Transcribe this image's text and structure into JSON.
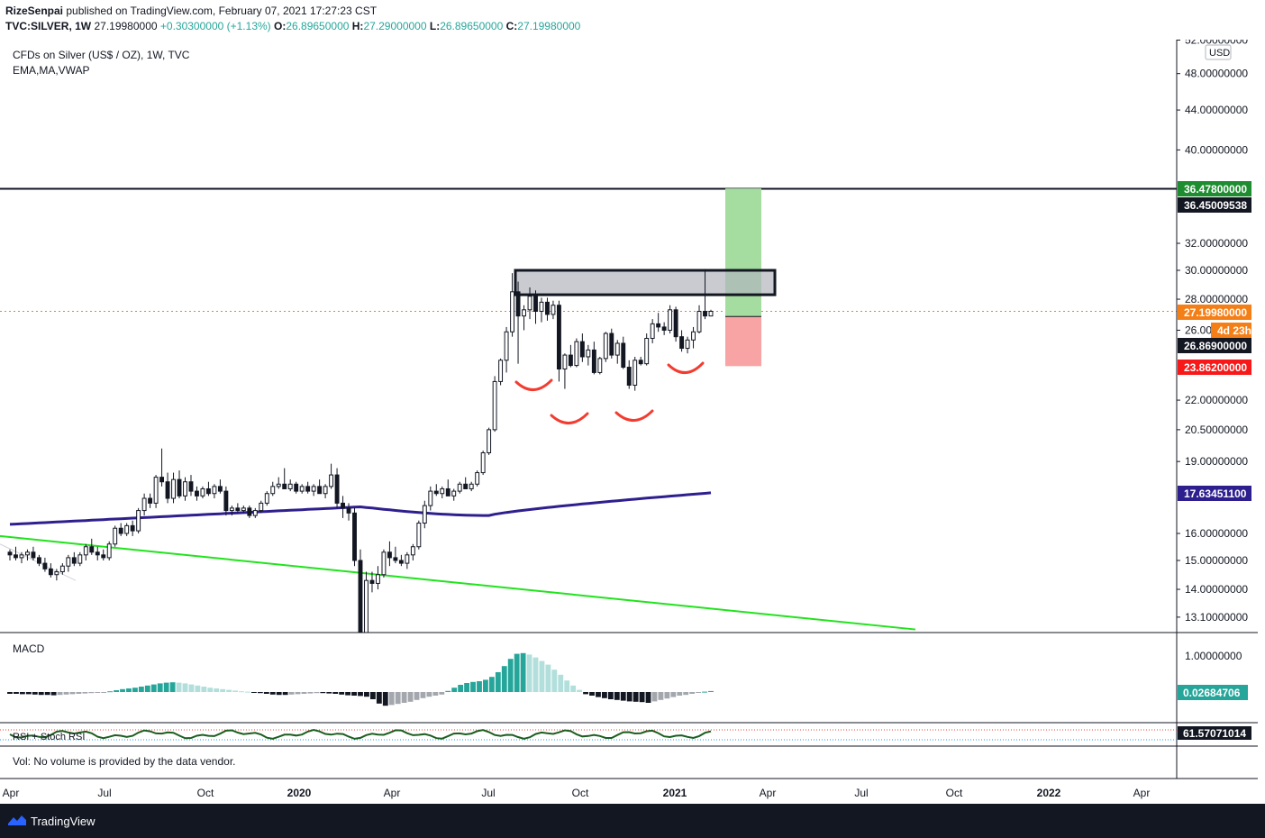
{
  "header": {
    "publisher": "RizeSenpai",
    "published_text": "published on TradingView.com, February 07, 2021 17:27:23 CST",
    "symbol": "TVC:SILVER, 1W",
    "last": "27.19980000",
    "change": "+0.30300000 (+1.13%)",
    "o_label": "O:",
    "o": "26.89650000",
    "h_label": "H:",
    "h": "27.29000000",
    "l_label": "L:",
    "l": "26.89650000",
    "c_label": "C:",
    "c": "27.19980000"
  },
  "legend": {
    "title": "CFDs on Silver (US$ / OZ), 1W, TVC",
    "indicators": "EMA,MA,VWAP"
  },
  "panes": {
    "macd_label": "MACD",
    "rsi_label": "RSI + Stoch RSI",
    "volume_note": "Vol: No volume is provided by the data vendor."
  },
  "footer": {
    "brand": "TradingView"
  },
  "colors": {
    "up": "#ffffff",
    "down": "#131722",
    "ema": "#2e1f8e",
    "trend": "#21e31d",
    "target": "#a5dca0",
    "stop": "#f8a3a4",
    "zone": "#b2b5be",
    "hs": "#f23c30",
    "macd_pos": "#26a69a",
    "macd_pos_fade": "#b2dfdb",
    "macd_neg": "#131722",
    "macd_neg_fade": "#a4a7ad"
  },
  "chart_data": {
    "type": "candlestick",
    "title": "CFDs on Silver (US$ / OZ), 1W, TVC",
    "y_scale": "log",
    "ylim": [
      12.7,
      53.5
    ],
    "currency_badge": "USD",
    "y_ticks": [
      "52.00000000",
      "48.00000000",
      "44.00000000",
      "40.00000000",
      "32.00000000",
      "30.00000000",
      "28.00000000",
      "26.00",
      "22.00000000",
      "20.50000000",
      "19.00000000",
      "16.00000000",
      "15.00000000",
      "14.00000000",
      "13.10000000"
    ],
    "price_labels": [
      {
        "value": "36.47800000",
        "color": "#1e8d30"
      },
      {
        "value": "36.45009538",
        "color": "#131722"
      },
      {
        "value": "27.19980000",
        "color": "#f57f17"
      },
      {
        "value": "4d 23h",
        "color": "#f57f17"
      },
      {
        "value": "26.86900000",
        "color": "#131722"
      },
      {
        "value": "23.86200000",
        "color": "#f71919"
      },
      {
        "value": "17.63451100",
        "color": "#2e1f8e"
      }
    ],
    "x_ticks": [
      "Apr",
      "Jul",
      "Oct",
      "2020",
      "Apr",
      "Jul",
      "Oct",
      "2021",
      "Apr",
      "Jul",
      "Oct",
      "2022",
      "Apr"
    ],
    "candles": [
      [
        15.3,
        15.4,
        15.0,
        15.2
      ],
      [
        15.2,
        15.5,
        15.0,
        15.1
      ],
      [
        15.1,
        15.3,
        14.9,
        15.2
      ],
      [
        15.2,
        15.4,
        15.0,
        15.3
      ],
      [
        15.3,
        15.5,
        15.0,
        15.1
      ],
      [
        15.1,
        15.2,
        14.8,
        14.9
      ],
      [
        14.9,
        15.1,
        14.6,
        14.7
      ],
      [
        14.7,
        14.9,
        14.4,
        14.5
      ],
      [
        14.5,
        14.7,
        14.3,
        14.6
      ],
      [
        14.6,
        14.9,
        14.5,
        14.8
      ],
      [
        14.8,
        15.2,
        14.6,
        15.1
      ],
      [
        15.1,
        15.3,
        14.8,
        14.9
      ],
      [
        14.9,
        15.3,
        14.8,
        15.2
      ],
      [
        15.2,
        15.6,
        15.0,
        15.5
      ],
      [
        15.5,
        15.8,
        15.2,
        15.3
      ],
      [
        15.3,
        15.5,
        15.0,
        15.2
      ],
      [
        15.2,
        15.4,
        15.0,
        15.1
      ],
      [
        15.1,
        15.7,
        15.0,
        15.6
      ],
      [
        15.6,
        16.3,
        15.5,
        16.2
      ],
      [
        16.2,
        16.4,
        15.9,
        16.0
      ],
      [
        16.0,
        16.4,
        15.9,
        16.3
      ],
      [
        16.3,
        16.5,
        15.9,
        16.1
      ],
      [
        16.1,
        17.0,
        16.0,
        16.9
      ],
      [
        16.9,
        17.6,
        16.7,
        17.4
      ],
      [
        17.4,
        17.6,
        17.0,
        17.2
      ],
      [
        17.2,
        18.4,
        17.0,
        18.3
      ],
      [
        18.3,
        19.6,
        17.9,
        18.1
      ],
      [
        18.1,
        18.5,
        17.2,
        17.4
      ],
      [
        17.4,
        18.5,
        17.2,
        18.2
      ],
      [
        18.2,
        18.6,
        17.4,
        17.5
      ],
      [
        17.5,
        18.3,
        17.3,
        18.1
      ],
      [
        18.1,
        18.4,
        17.5,
        17.7
      ],
      [
        17.7,
        17.9,
        17.3,
        17.5
      ],
      [
        17.5,
        17.9,
        17.4,
        17.8
      ],
      [
        17.8,
        18.1,
        17.5,
        17.6
      ],
      [
        17.6,
        18.0,
        17.4,
        17.9
      ],
      [
        17.9,
        18.2,
        17.6,
        17.7
      ],
      [
        17.7,
        17.9,
        16.7,
        16.9
      ],
      [
        16.9,
        17.1,
        16.7,
        17.0
      ],
      [
        17.0,
        17.2,
        16.8,
        16.9
      ],
      [
        16.9,
        17.1,
        16.8,
        17.0
      ],
      [
        17.0,
        17.1,
        16.6,
        16.7
      ],
      [
        16.7,
        17.0,
        16.6,
        16.9
      ],
      [
        16.9,
        17.3,
        16.8,
        17.2
      ],
      [
        17.2,
        17.7,
        17.1,
        17.6
      ],
      [
        17.6,
        18.1,
        17.5,
        17.9
      ],
      [
        17.9,
        18.3,
        17.8,
        18.0
      ],
      [
        18.0,
        18.7,
        17.9,
        17.8
      ],
      [
        17.8,
        18.2,
        17.7,
        18.0
      ],
      [
        18.0,
        18.1,
        17.6,
        17.7
      ],
      [
        17.7,
        18.0,
        17.6,
        17.9
      ],
      [
        17.9,
        18.1,
        17.6,
        17.7
      ],
      [
        17.7,
        18.0,
        17.5,
        17.9
      ],
      [
        17.9,
        18.2,
        17.6,
        17.6
      ],
      [
        17.6,
        18.0,
        17.4,
        17.9
      ],
      [
        17.9,
        18.9,
        17.8,
        18.4
      ],
      [
        18.4,
        18.7,
        17.0,
        17.2
      ],
      [
        17.2,
        17.5,
        16.6,
        17.0
      ],
      [
        17.0,
        17.2,
        16.5,
        16.8
      ],
      [
        16.8,
        17.0,
        14.8,
        15.0
      ],
      [
        15.0,
        15.4,
        12.0,
        12.3
      ],
      [
        12.3,
        14.6,
        11.6,
        14.3
      ],
      [
        14.3,
        14.6,
        13.9,
        14.2
      ],
      [
        14.2,
        14.8,
        14.0,
        14.5
      ],
      [
        14.5,
        15.4,
        14.4,
        15.3
      ],
      [
        15.3,
        15.7,
        14.8,
        15.1
      ],
      [
        15.1,
        15.5,
        14.9,
        15.0
      ],
      [
        15.0,
        15.2,
        14.8,
        14.9
      ],
      [
        14.9,
        15.3,
        14.7,
        15.2
      ],
      [
        15.2,
        15.6,
        15.0,
        15.5
      ],
      [
        15.5,
        16.5,
        15.4,
        16.4
      ],
      [
        16.4,
        17.3,
        16.2,
        17.1
      ],
      [
        17.1,
        17.9,
        16.9,
        17.7
      ],
      [
        17.7,
        18.0,
        17.5,
        17.6
      ],
      [
        17.6,
        17.9,
        17.4,
        17.8
      ],
      [
        17.8,
        18.2,
        17.6,
        17.5
      ],
      [
        17.5,
        17.8,
        17.3,
        17.7
      ],
      [
        17.7,
        18.1,
        17.6,
        18.0
      ],
      [
        18.0,
        18.3,
        17.8,
        17.8
      ],
      [
        17.8,
        18.1,
        17.7,
        18.0
      ],
      [
        18.0,
        18.6,
        17.9,
        18.5
      ],
      [
        18.5,
        19.5,
        18.4,
        19.4
      ],
      [
        19.4,
        20.6,
        19.3,
        20.5
      ],
      [
        20.5,
        23.3,
        20.4,
        23.0
      ],
      [
        23.0,
        24.3,
        22.8,
        24.2
      ],
      [
        24.2,
        26.2,
        23.5,
        25.9
      ],
      [
        25.9,
        29.8,
        25.6,
        28.5
      ],
      [
        28.5,
        29.2,
        24.0,
        26.9
      ],
      [
        26.9,
        27.6,
        26.0,
        27.3
      ],
      [
        27.3,
        28.8,
        26.7,
        28.2
      ],
      [
        28.2,
        28.6,
        26.4,
        27.2
      ],
      [
        27.2,
        28.1,
        26.5,
        27.8
      ],
      [
        27.8,
        28.1,
        26.6,
        27.0
      ],
      [
        27.0,
        27.9,
        26.7,
        27.6
      ],
      [
        27.6,
        27.9,
        23.0,
        23.7
      ],
      [
        23.7,
        24.6,
        22.6,
        24.5
      ],
      [
        24.5,
        25.1,
        23.8,
        23.9
      ],
      [
        23.9,
        25.5,
        23.8,
        25.3
      ],
      [
        25.3,
        25.8,
        24.1,
        24.4
      ],
      [
        24.4,
        25.1,
        23.9,
        24.8
      ],
      [
        24.8,
        25.3,
        23.4,
        23.5
      ],
      [
        23.5,
        24.4,
        23.4,
        24.3
      ],
      [
        24.3,
        25.9,
        24.1,
        25.8
      ],
      [
        25.8,
        26.1,
        24.3,
        24.5
      ],
      [
        24.5,
        25.4,
        24.0,
        25.2
      ],
      [
        25.2,
        25.6,
        23.7,
        23.8
      ],
      [
        23.8,
        24.2,
        22.6,
        22.8
      ],
      [
        22.8,
        24.4,
        22.5,
        24.2
      ],
      [
        24.2,
        24.4,
        23.9,
        24.0
      ],
      [
        24.0,
        25.8,
        23.9,
        25.5
      ],
      [
        25.5,
        26.7,
        25.2,
        26.4
      ],
      [
        26.4,
        27.1,
        25.9,
        26.2
      ],
      [
        26.2,
        26.5,
        25.7,
        26.0
      ],
      [
        26.0,
        27.6,
        25.8,
        27.3
      ],
      [
        27.3,
        27.5,
        25.3,
        25.6
      ],
      [
        25.6,
        26.0,
        24.7,
        24.9
      ],
      [
        24.9,
        25.6,
        24.6,
        25.4
      ],
      [
        25.4,
        26.2,
        24.9,
        25.9
      ],
      [
        25.9,
        27.6,
        25.8,
        27.2
      ],
      [
        27.2,
        30.1,
        26.7,
        26.9
      ],
      [
        26.9,
        27.3,
        26.9,
        27.2
      ]
    ],
    "ema_line": {
      "start": 16.35,
      "mid_2020_mar": 17.05,
      "end": 17.63
    },
    "horizontal_line": 36.45,
    "resistance_zone": [
      28.3,
      30.0
    ],
    "long_position": {
      "entry": 26.869,
      "target": 36.478,
      "stop": 23.862
    },
    "macd_ticks": [
      "1.00000000"
    ],
    "macd_last": "0.02684706",
    "macd_hist": [
      -0.05,
      -0.05,
      -0.06,
      -0.06,
      -0.07,
      -0.08,
      -0.08,
      -0.09,
      -0.08,
      -0.07,
      -0.06,
      -0.05,
      -0.04,
      -0.03,
      -0.02,
      -0.01,
      0.02,
      0.05,
      0.08,
      0.1,
      0.12,
      0.15,
      0.18,
      0.21,
      0.24,
      0.26,
      0.27,
      0.26,
      0.24,
      0.21,
      0.18,
      0.15,
      0.12,
      0.1,
      0.08,
      0.06,
      0.04,
      0.02,
      0.01,
      -0.01,
      -0.03,
      -0.05,
      -0.07,
      -0.08,
      -0.08,
      -0.07,
      -0.06,
      -0.05,
      -0.04,
      -0.03,
      -0.03,
      -0.04,
      -0.05,
      -0.07,
      -0.09,
      -0.1,
      -0.11,
      -0.13,
      -0.2,
      -0.32,
      -0.38,
      -0.36,
      -0.33,
      -0.3,
      -0.27,
      -0.22,
      -0.17,
      -0.13,
      -0.1,
      -0.07,
      0.03,
      0.12,
      0.2,
      0.25,
      0.28,
      0.3,
      0.34,
      0.42,
      0.55,
      0.72,
      0.92,
      1.06,
      1.08,
      1.04,
      0.96,
      0.86,
      0.76,
      0.62,
      0.48,
      0.32,
      0.18,
      0.06,
      -0.06,
      -0.1,
      -0.14,
      -0.17,
      -0.2,
      -0.22,
      -0.24,
      -0.26,
      -0.27,
      -0.28,
      -0.3,
      -0.26,
      -0.22,
      -0.18,
      -0.14,
      -0.1,
      -0.08,
      -0.05,
      -0.02,
      0.01,
      0.027
    ],
    "rsi_last": "61.57071014"
  }
}
